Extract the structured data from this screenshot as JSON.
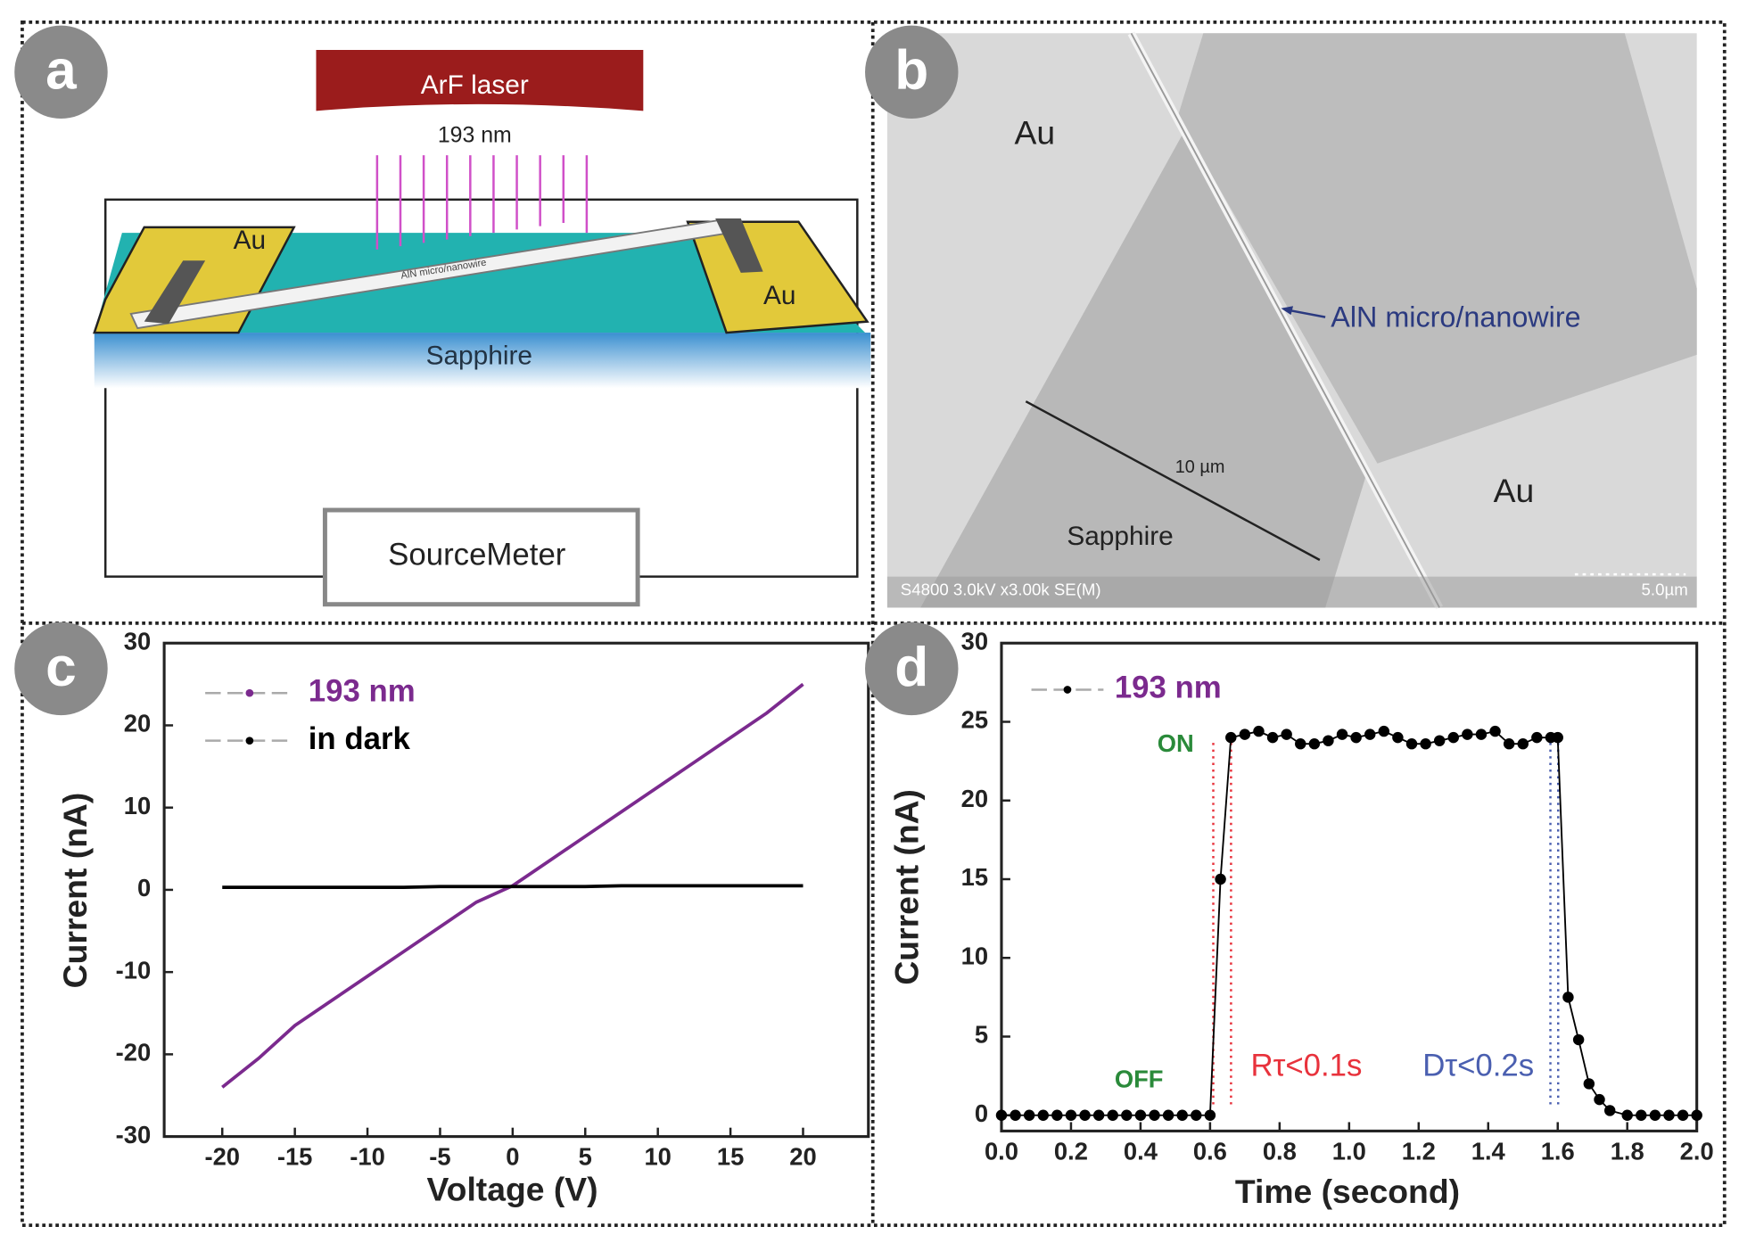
{
  "panel_labels": [
    "a",
    "b",
    "c",
    "d"
  ],
  "diagram": {
    "laser": "ArF laser",
    "wavelength": "193 nm",
    "electrode_left": "Au",
    "electrode_right": "Au",
    "wire": "AlN micro/nanowire",
    "substrate": "Sapphire",
    "instrument": "SourceMeter"
  },
  "micrograph": {
    "electrode_left": "Au",
    "electrode_right": "Au",
    "substrate": "Sapphire",
    "wire": "AlN micro/nanowire",
    "width": "10 µm",
    "footer": "S4800 3.0kV x3.00k SE(M)",
    "scale_bar": "5.0µm"
  },
  "chart_data": [
    {
      "type": "line",
      "xlabel": "Voltage (V)",
      "ylabel": "Current (nA)",
      "x": [
        -20,
        -17.5,
        -15,
        -12.5,
        -10,
        -7.5,
        -5,
        -2.5,
        0,
        2.5,
        5,
        7.5,
        10,
        12.5,
        15,
        17.5,
        20
      ],
      "series": [
        {
          "name": "193 nm",
          "color": "#7b2a8e",
          "label_color": "#7b2a8e",
          "values": [
            -24,
            -20.5,
            -16.5,
            -13.5,
            -10.5,
            -7.5,
            -4.5,
            -1.5,
            0.5,
            3.5,
            6.5,
            9.5,
            12.5,
            15.5,
            18.5,
            21.5,
            25
          ]
        },
        {
          "name": "in dark",
          "color": "#000000",
          "label_color": "#000000",
          "values": [
            0.3,
            0.3,
            0.3,
            0.3,
            0.3,
            0.3,
            0.4,
            0.4,
            0.4,
            0.4,
            0.4,
            0.5,
            0.5,
            0.5,
            0.5,
            0.5,
            0.5
          ]
        }
      ],
      "xlim": [
        -24,
        24.5
      ],
      "ylim": [
        -30,
        30
      ],
      "xticks": [
        -20,
        -15,
        -10,
        -5,
        0,
        5,
        10,
        15,
        20
      ],
      "yticks": [
        -30,
        -20,
        -10,
        0,
        10,
        20,
        30
      ],
      "markers": false,
      "legend": "upper left"
    },
    {
      "type": "line",
      "xlabel": "Time (second)",
      "ylabel": "Current (nA)",
      "x": [
        0,
        0.04,
        0.08,
        0.12,
        0.16,
        0.2,
        0.24,
        0.28,
        0.32,
        0.36,
        0.4,
        0.44,
        0.48,
        0.52,
        0.56,
        0.6,
        0.63,
        0.66,
        0.7,
        0.74,
        0.78,
        0.82,
        0.86,
        0.9,
        0.94,
        0.98,
        1.02,
        1.06,
        1.1,
        1.14,
        1.18,
        1.22,
        1.26,
        1.3,
        1.34,
        1.38,
        1.42,
        1.46,
        1.5,
        1.54,
        1.58,
        1.6,
        1.63,
        1.66,
        1.69,
        1.72,
        1.75,
        1.8,
        1.84,
        1.88,
        1.92,
        1.96,
        2.0
      ],
      "series": [
        {
          "name": "193 nm",
          "color": "#000000",
          "label_color": "#7b2a8e",
          "values": [
            0,
            0,
            0,
            0,
            0,
            0,
            0,
            0,
            0,
            0,
            0,
            0,
            0,
            0,
            0,
            0,
            15,
            24,
            24.2,
            24.4,
            24,
            24.2,
            23.6,
            23.6,
            23.8,
            24.2,
            24,
            24.2,
            24.4,
            24,
            23.6,
            23.6,
            23.8,
            24,
            24.2,
            24.2,
            24.4,
            23.6,
            23.6,
            24,
            24,
            24,
            7.5,
            4.8,
            2,
            1,
            0.3,
            0,
            0,
            0,
            0,
            0,
            0
          ]
        }
      ],
      "xlim": [
        0,
        2
      ],
      "ylim": [
        -1,
        30
      ],
      "xticks": [
        {
          "value": 0,
          "label": "0.0"
        },
        0.2,
        0.4,
        0.6,
        0.8,
        {
          "value": 1,
          "label": "1.0"
        },
        1.2,
        1.4,
        1.6,
        1.8,
        {
          "value": 2,
          "label": "2.0"
        }
      ],
      "yticks": [
        0,
        5,
        10,
        15,
        20,
        25,
        30
      ],
      "markers": true,
      "legend": "upper left",
      "annotations": [
        {
          "text": "ON",
          "color": "#2a8a3a"
        },
        {
          "text": "OFF",
          "color": "#2a8a3a"
        },
        {
          "text": "Rτ<0.1s",
          "color": "#e8323c"
        },
        {
          "text": "Dτ<0.2s",
          "color": "#4a5fb0"
        }
      ]
    }
  ]
}
